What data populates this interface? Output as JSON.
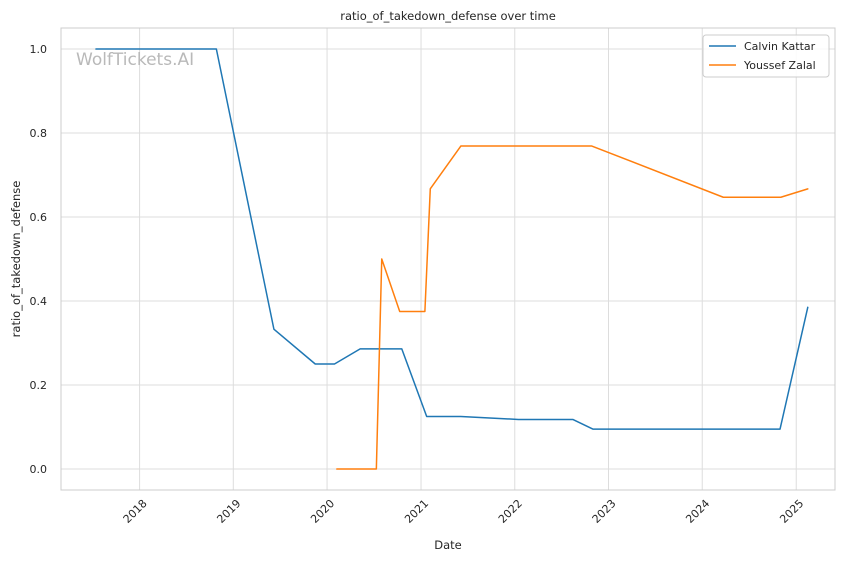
{
  "chart_data": {
    "type": "line",
    "title": "ratio_of_takedown_defense over time",
    "xlabel": "Date",
    "ylabel": "ratio_of_takedown_defense",
    "watermark": "WolfTickets.AI",
    "xlim": [
      "2017-03-01",
      "2025-06-01"
    ],
    "ylim": [
      -0.05,
      1.05
    ],
    "x_ticks": [
      "2018-01-01",
      "2019-01-01",
      "2020-01-01",
      "2021-01-01",
      "2022-01-01",
      "2023-01-01",
      "2024-01-01",
      "2025-01-01"
    ],
    "x_tick_labels": [
      "2018",
      "2019",
      "2020",
      "2021",
      "2022",
      "2023",
      "2024",
      "2025"
    ],
    "y_ticks": [
      0.0,
      0.2,
      0.4,
      0.6,
      0.8,
      1.0
    ],
    "y_tick_labels": [
      "0.0",
      "0.2",
      "0.4",
      "0.6",
      "0.8",
      "1.0"
    ],
    "grid": true,
    "legend_position": "top-right",
    "series": [
      {
        "name": "Calvin Kattar",
        "color": "#1f77b4",
        "points": [
          {
            "x": "2017-07-15",
            "y": 1.0
          },
          {
            "x": "2018-10-27",
            "y": 1.0
          },
          {
            "x": "2019-06-08",
            "y": 0.333
          },
          {
            "x": "2019-11-16",
            "y": 0.25
          },
          {
            "x": "2020-01-30",
            "y": 0.25
          },
          {
            "x": "2020-05-09",
            "y": 0.286
          },
          {
            "x": "2020-10-18",
            "y": 0.286
          },
          {
            "x": "2021-01-23",
            "y": 0.125
          },
          {
            "x": "2021-06-05",
            "y": 0.125
          },
          {
            "x": "2022-01-15",
            "y": 0.118
          },
          {
            "x": "2022-08-15",
            "y": 0.118
          },
          {
            "x": "2022-11-01",
            "y": 0.095
          },
          {
            "x": "2024-10-30",
            "y": 0.095
          },
          {
            "x": "2025-02-15",
            "y": 0.385
          }
        ]
      },
      {
        "name": "Youssef Zalal",
        "color": "#ff7f0e",
        "points": [
          {
            "x": "2020-02-08",
            "y": 0.0
          },
          {
            "x": "2020-07-11",
            "y": 0.0
          },
          {
            "x": "2020-08-01",
            "y": 0.5
          },
          {
            "x": "2020-10-10",
            "y": 0.375
          },
          {
            "x": "2021-01-16",
            "y": 0.375
          },
          {
            "x": "2021-02-06",
            "y": 0.667
          },
          {
            "x": "2021-06-05",
            "y": 0.769
          },
          {
            "x": "2022-10-28",
            "y": 0.769
          },
          {
            "x": "2024-03-23",
            "y": 0.647
          },
          {
            "x": "2024-11-02",
            "y": 0.647
          },
          {
            "x": "2025-02-15",
            "y": 0.667
          }
        ]
      }
    ]
  }
}
